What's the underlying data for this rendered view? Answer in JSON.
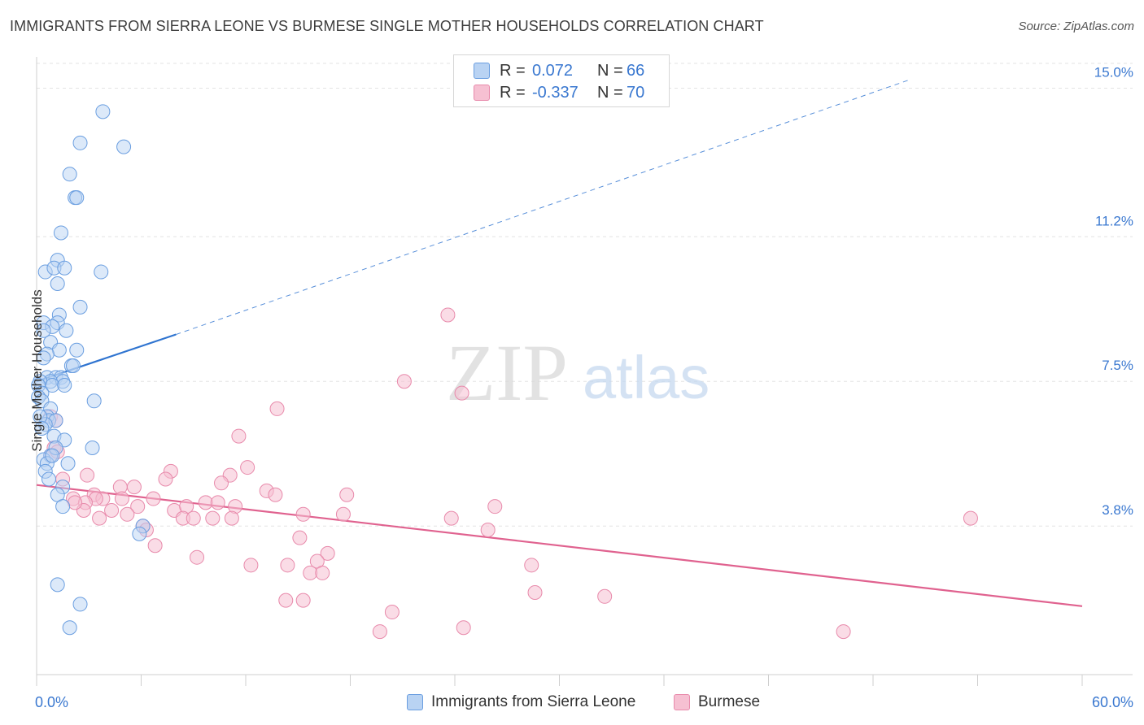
{
  "title": "IMMIGRANTS FROM SIERRA LEONE VS BURMESE SINGLE MOTHER HOUSEHOLDS CORRELATION CHART",
  "source": "Source: ZipAtlas.com",
  "watermark": {
    "zip": "ZIP",
    "atlas": "atlas"
  },
  "legend": {
    "rows": [
      {
        "r_label": "R =",
        "r_value": "0.072",
        "n_label": "N =",
        "n_value": "66"
      },
      {
        "r_label": "R =",
        "r_value": "-0.337",
        "n_label": "N =",
        "n_value": "70"
      }
    ]
  },
  "bottom_legend": {
    "series_a": "Immigrants from Sierra Leone",
    "series_b": "Burmese"
  },
  "colors": {
    "blue_fill": "#b9d3f3",
    "blue_stroke": "#6a9ee0",
    "blue_line": "#2f74d0",
    "pink_fill": "#f6c0d2",
    "pink_stroke": "#e88aab",
    "pink_line": "#e0628f",
    "tick_label": "#3a78d0",
    "grid": "#e3e3e3"
  },
  "chart_data": {
    "type": "scatter",
    "title": "IMMIGRANTS FROM SIERRA LEONE VS BURMESE SINGLE MOTHER HOUSEHOLDS CORRELATION CHART",
    "xlabel": "",
    "ylabel": "Single Mother Households",
    "xlim": [
      0,
      60
    ],
    "ylim": [
      0,
      15.8
    ],
    "x_tick_labels": [
      "0.0%",
      "60.0%"
    ],
    "y_ticks": [
      3.8,
      7.5,
      11.2,
      15.0
    ],
    "y_tick_labels": [
      "3.8%",
      "7.5%",
      "11.2%",
      "15.0%"
    ],
    "grid": "horizontal dashed",
    "legend_position": "top-center",
    "series": [
      {
        "name": "Immigrants from Sierra Leone",
        "color": "blue",
        "R": 0.072,
        "N": 66,
        "trend": {
          "x0": 0.0,
          "y0": 7.5,
          "x1": 8.0,
          "y1": 8.7,
          "dashed_to_x": 50.0,
          "dashed_to_y": 15.2
        },
        "points": [
          [
            3.8,
            14.4
          ],
          [
            2.5,
            13.6
          ],
          [
            5.0,
            13.5
          ],
          [
            1.9,
            12.8
          ],
          [
            2.2,
            12.2
          ],
          [
            2.3,
            12.2
          ],
          [
            1.4,
            11.3
          ],
          [
            1.2,
            10.6
          ],
          [
            0.5,
            10.3
          ],
          [
            1.0,
            10.4
          ],
          [
            1.6,
            10.4
          ],
          [
            3.7,
            10.3
          ],
          [
            1.2,
            10.0
          ],
          [
            2.5,
            9.4
          ],
          [
            1.3,
            9.2
          ],
          [
            1.2,
            9.0
          ],
          [
            0.4,
            9.0
          ],
          [
            0.9,
            8.9
          ],
          [
            0.4,
            8.8
          ],
          [
            1.7,
            8.8
          ],
          [
            0.8,
            8.5
          ],
          [
            1.3,
            8.3
          ],
          [
            2.3,
            8.3
          ],
          [
            0.6,
            8.2
          ],
          [
            0.4,
            8.1
          ],
          [
            2.0,
            7.9
          ],
          [
            2.1,
            7.9
          ],
          [
            0.6,
            7.6
          ],
          [
            1.1,
            7.6
          ],
          [
            1.4,
            7.6
          ],
          [
            0.8,
            7.5
          ],
          [
            1.5,
            7.5
          ],
          [
            0.2,
            7.5
          ],
          [
            0.9,
            7.4
          ],
          [
            1.6,
            7.4
          ],
          [
            0.1,
            7.4
          ],
          [
            0.3,
            7.2
          ],
          [
            0.1,
            7.1
          ],
          [
            0.3,
            7.0
          ],
          [
            3.3,
            7.0
          ],
          [
            0.8,
            6.8
          ],
          [
            0.6,
            6.6
          ],
          [
            0.7,
            6.5
          ],
          [
            1.1,
            6.5
          ],
          [
            0.5,
            6.4
          ],
          [
            1.0,
            6.1
          ],
          [
            1.6,
            6.0
          ],
          [
            3.2,
            5.8
          ],
          [
            0.8,
            5.6
          ],
          [
            0.4,
            5.5
          ],
          [
            0.6,
            5.4
          ],
          [
            1.8,
            5.4
          ],
          [
            0.5,
            5.2
          ],
          [
            0.7,
            5.0
          ],
          [
            1.5,
            4.8
          ],
          [
            1.2,
            4.6
          ],
          [
            1.5,
            4.3
          ],
          [
            6.1,
            3.8
          ],
          [
            5.9,
            3.6
          ],
          [
            1.2,
            2.3
          ],
          [
            2.5,
            1.8
          ],
          [
            1.9,
            1.2
          ],
          [
            0.2,
            6.6
          ],
          [
            0.3,
            6.3
          ],
          [
            1.1,
            5.8
          ],
          [
            0.9,
            5.6
          ]
        ]
      },
      {
        "name": "Burmese",
        "color": "pink",
        "R": -0.337,
        "N": 70,
        "trend": {
          "x0": 0.0,
          "y0": 4.85,
          "x1": 60.0,
          "y1": 1.75
        },
        "points": [
          [
            23.6,
            9.2
          ],
          [
            21.1,
            7.5
          ],
          [
            24.4,
            7.2
          ],
          [
            13.8,
            6.8
          ],
          [
            11.6,
            6.1
          ],
          [
            0.8,
            6.6
          ],
          [
            1.1,
            6.5
          ],
          [
            1.0,
            5.8
          ],
          [
            0.8,
            5.6
          ],
          [
            7.7,
            5.2
          ],
          [
            12.1,
            5.3
          ],
          [
            2.9,
            5.1
          ],
          [
            11.1,
            5.1
          ],
          [
            1.5,
            5.0
          ],
          [
            7.4,
            5.0
          ],
          [
            10.6,
            4.9
          ],
          [
            13.2,
            4.7
          ],
          [
            17.8,
            4.6
          ],
          [
            3.3,
            4.6
          ],
          [
            13.7,
            4.6
          ],
          [
            3.8,
            4.5
          ],
          [
            4.8,
            4.8
          ],
          [
            5.6,
            4.8
          ],
          [
            6.7,
            4.5
          ],
          [
            2.1,
            4.5
          ],
          [
            3.4,
            4.5
          ],
          [
            4.9,
            4.5
          ],
          [
            9.7,
            4.4
          ],
          [
            2.8,
            4.4
          ],
          [
            10.4,
            4.4
          ],
          [
            11.4,
            4.3
          ],
          [
            7.9,
            4.2
          ],
          [
            8.6,
            4.3
          ],
          [
            26.3,
            4.3
          ],
          [
            5.8,
            4.3
          ],
          [
            2.7,
            4.2
          ],
          [
            4.3,
            4.2
          ],
          [
            5.2,
            4.1
          ],
          [
            15.3,
            4.1
          ],
          [
            17.6,
            4.1
          ],
          [
            8.4,
            4.0
          ],
          [
            9.0,
            4.0
          ],
          [
            10.1,
            4.0
          ],
          [
            11.2,
            4.0
          ],
          [
            3.6,
            4.0
          ],
          [
            23.8,
            4.0
          ],
          [
            6.1,
            3.8
          ],
          [
            6.3,
            3.7
          ],
          [
            25.9,
            3.7
          ],
          [
            15.1,
            3.5
          ],
          [
            6.8,
            3.3
          ],
          [
            16.7,
            3.1
          ],
          [
            9.2,
            3.0
          ],
          [
            16.1,
            2.9
          ],
          [
            12.3,
            2.8
          ],
          [
            14.4,
            2.8
          ],
          [
            28.4,
            2.8
          ],
          [
            15.7,
            2.6
          ],
          [
            16.4,
            2.6
          ],
          [
            28.6,
            2.1
          ],
          [
            32.6,
            2.0
          ],
          [
            14.3,
            1.9
          ],
          [
            15.3,
            1.9
          ],
          [
            20.4,
            1.6
          ],
          [
            24.5,
            1.2
          ],
          [
            19.7,
            1.1
          ],
          [
            46.3,
            1.1
          ],
          [
            53.6,
            4.0
          ],
          [
            1.2,
            5.7
          ],
          [
            2.2,
            4.4
          ]
        ]
      }
    ]
  }
}
